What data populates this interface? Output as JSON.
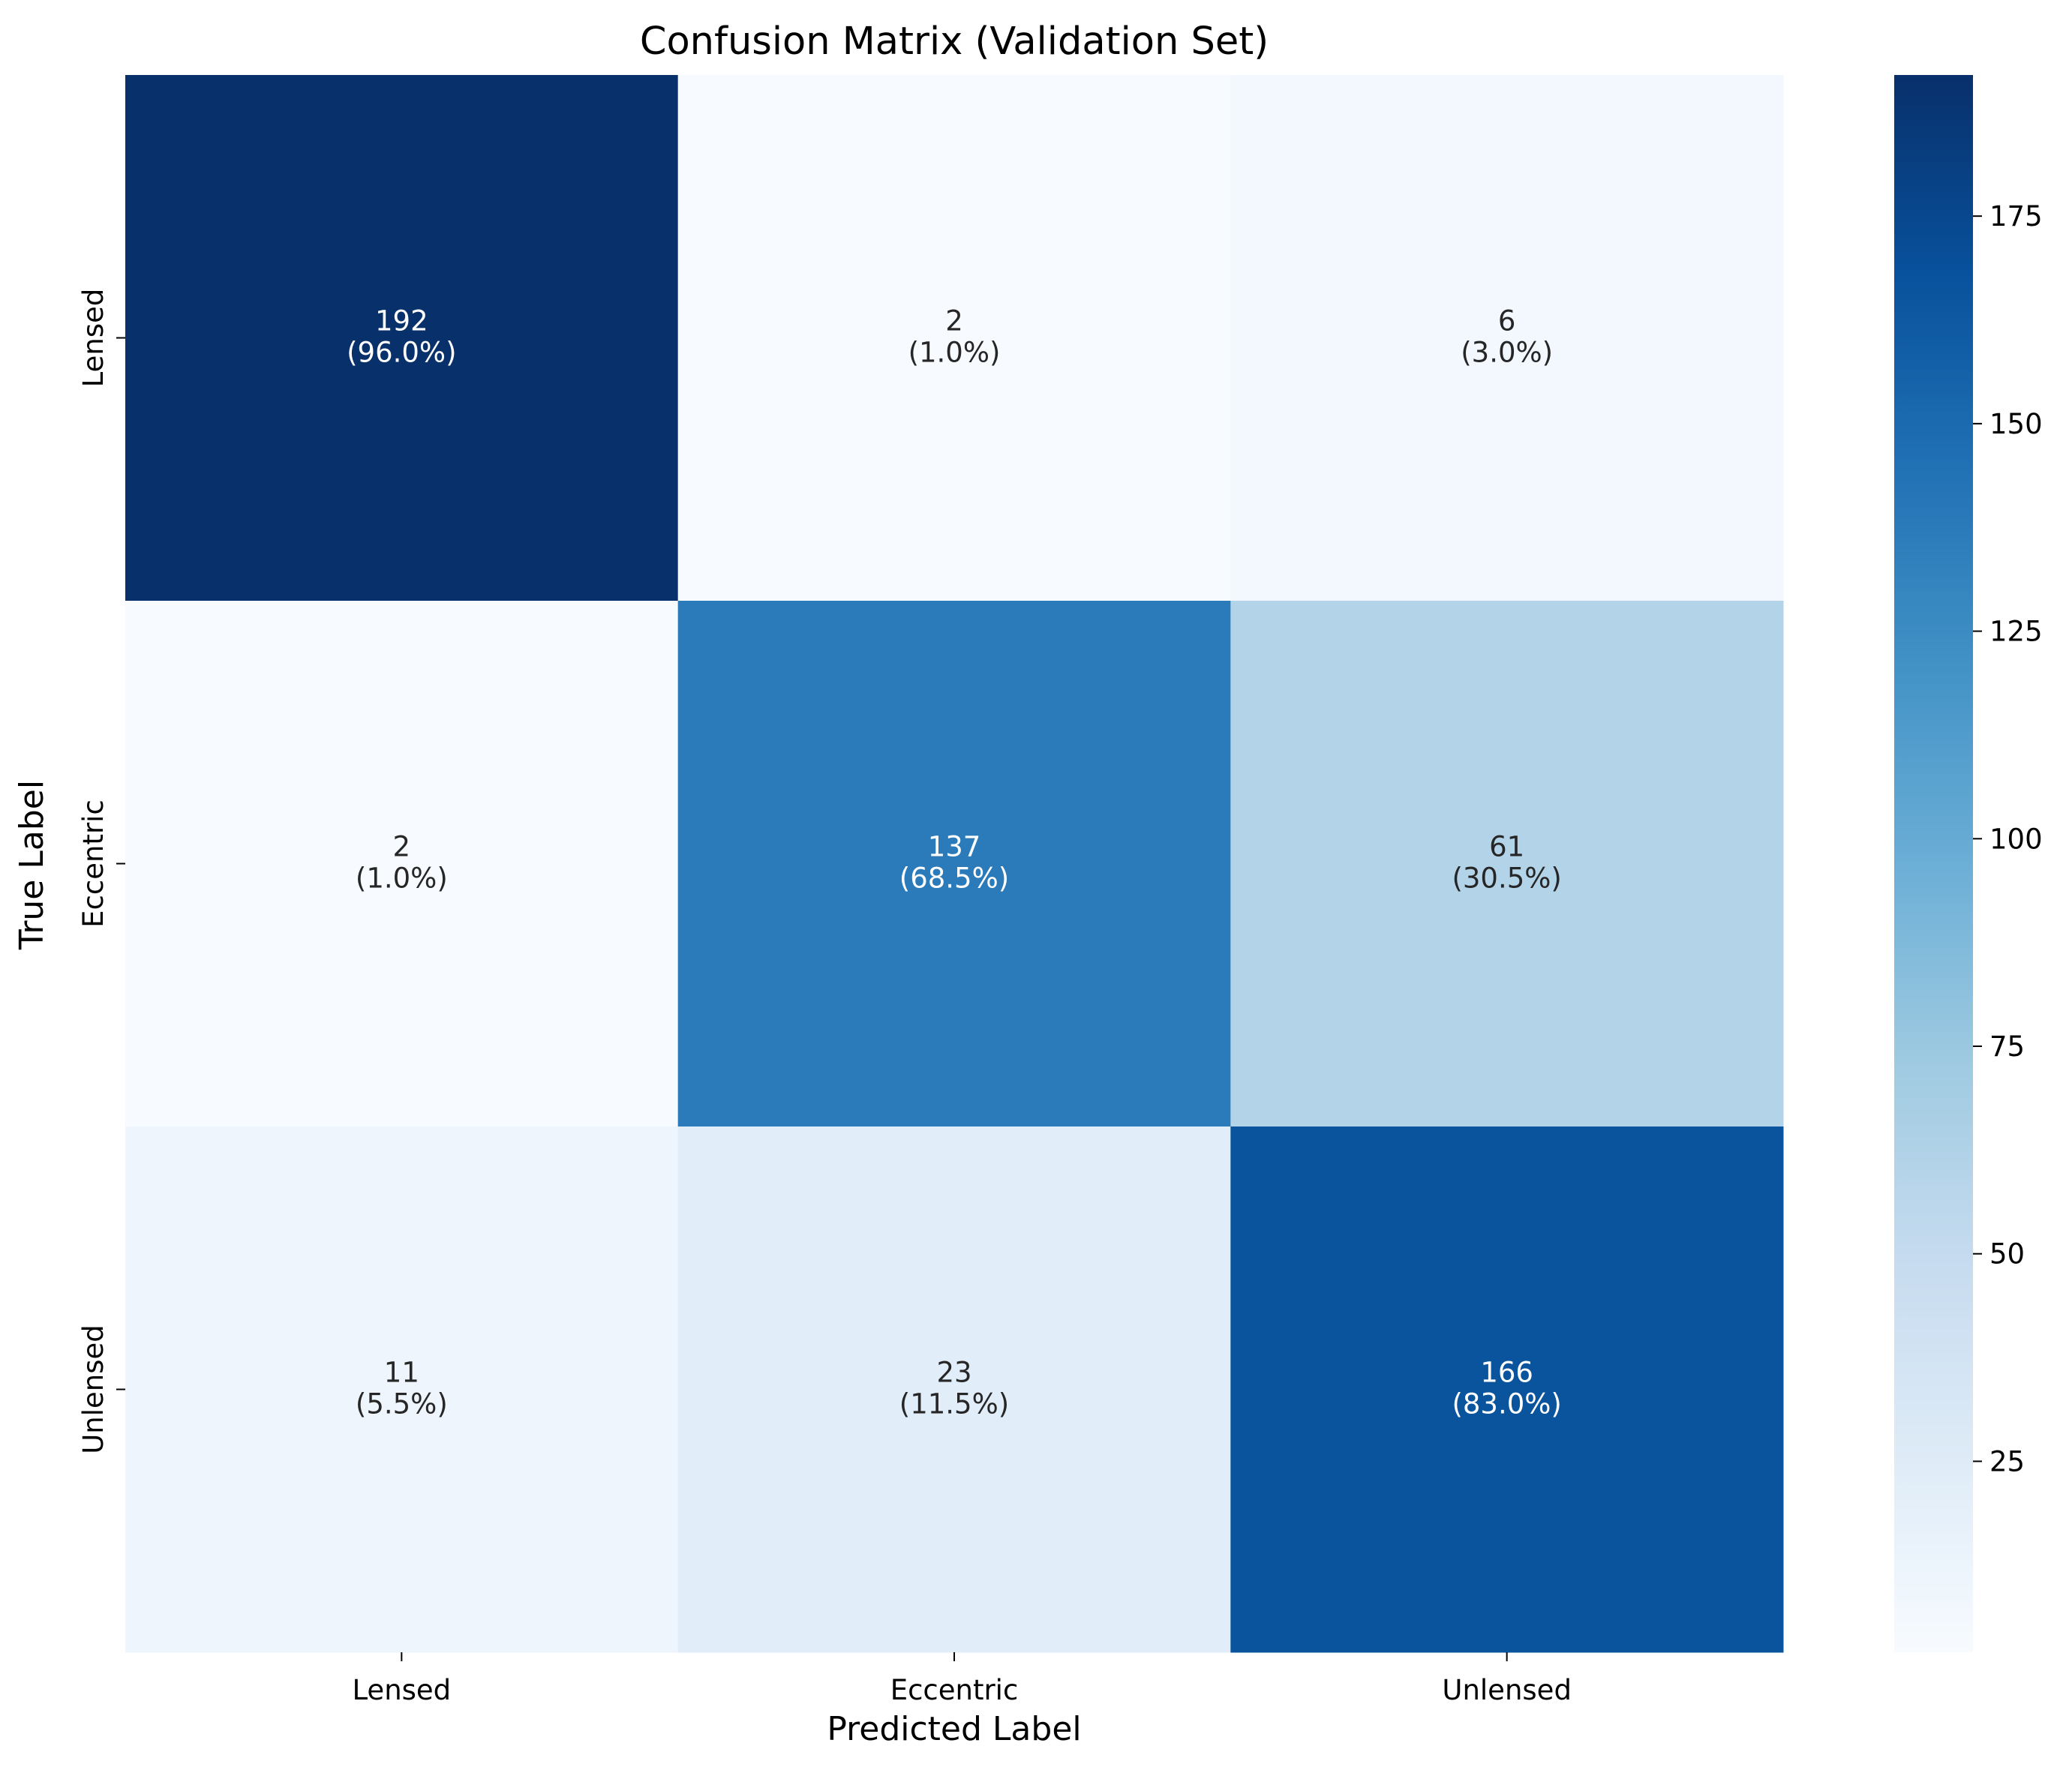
{
  "chart_data": {
    "type": "heatmap",
    "title": "Confusion Matrix (Validation Set)",
    "xlabel": "Predicted Label",
    "ylabel": "True Label",
    "x_categories": [
      "Lensed",
      "Eccentric",
      "Unlensed"
    ],
    "y_categories": [
      "Lensed",
      "Eccentric",
      "Unlensed"
    ],
    "values": [
      [
        192,
        2,
        6
      ],
      [
        2,
        137,
        61
      ],
      [
        11,
        23,
        166
      ]
    ],
    "annotations": [
      [
        {
          "count": "192",
          "percent": "(96.0%)"
        },
        {
          "count": "2",
          "percent": "(1.0%)"
        },
        {
          "count": "6",
          "percent": "(3.0%)"
        }
      ],
      [
        {
          "count": "2",
          "percent": "(1.0%)"
        },
        {
          "count": "137",
          "percent": "(68.5%)"
        },
        {
          "count": "61",
          "percent": "(30.5%)"
        }
      ],
      [
        {
          "count": "11",
          "percent": "(5.5%)"
        },
        {
          "count": "23",
          "percent": "(11.5%)"
        },
        {
          "count": "166",
          "percent": "(83.0%)"
        }
      ]
    ],
    "colormap": "Blues",
    "colorbar": {
      "vmin": 2,
      "vmax": 192,
      "ticks": [
        25,
        50,
        75,
        100,
        125,
        150,
        175
      ]
    }
  }
}
